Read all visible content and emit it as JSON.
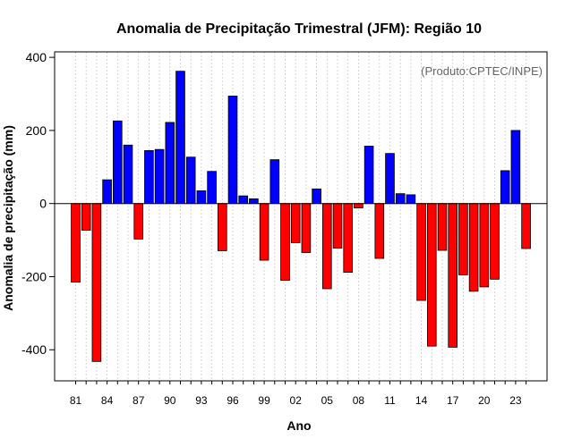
{
  "chart_data": {
    "type": "bar",
    "title": "Anomalia de Precipitação Trimestral (JFM): Região 10",
    "xlabel": "Ano",
    "ylabel": "Anomalia de precipitação (mm)",
    "annotation": "(Produto:CPTEC/INPE)",
    "ylim": [
      -485,
      415
    ],
    "yticks": [
      -400,
      -200,
      0,
      200,
      400
    ],
    "xtick_labels": [
      "81",
      "84",
      "87",
      "90",
      "93",
      "96",
      "99",
      "02",
      "05",
      "08",
      "11",
      "14",
      "17",
      "20",
      "23"
    ],
    "xtick_years": [
      1981,
      1984,
      1987,
      1990,
      1993,
      1996,
      1999,
      2002,
      2005,
      2008,
      2011,
      2014,
      2017,
      2020,
      2023
    ],
    "grid": true,
    "positive_color": "#0000ff",
    "negative_color": "#ff0000",
    "categories": [
      1981,
      1982,
      1983,
      1984,
      1985,
      1986,
      1987,
      1988,
      1989,
      1990,
      1991,
      1992,
      1993,
      1994,
      1995,
      1996,
      1997,
      1998,
      1999,
      2000,
      2001,
      2002,
      2003,
      2004,
      2005,
      2006,
      2007,
      2008,
      2009,
      2010,
      2011,
      2012,
      2013,
      2014,
      2015,
      2016,
      2017,
      2018,
      2019,
      2020,
      2021,
      2022,
      2023,
      2024
    ],
    "values": [
      -215,
      -73,
      -432,
      65,
      226,
      160,
      -97,
      145,
      148,
      222,
      362,
      127,
      35,
      88,
      -129,
      294,
      21,
      13,
      -155,
      120,
      -210,
      -107,
      -134,
      40,
      -233,
      -122,
      -188,
      -12,
      157,
      -150,
      137,
      27,
      24,
      -265,
      -390,
      -128,
      -393,
      -195,
      -240,
      -228,
      -207,
      90,
      200,
      -123
    ]
  }
}
